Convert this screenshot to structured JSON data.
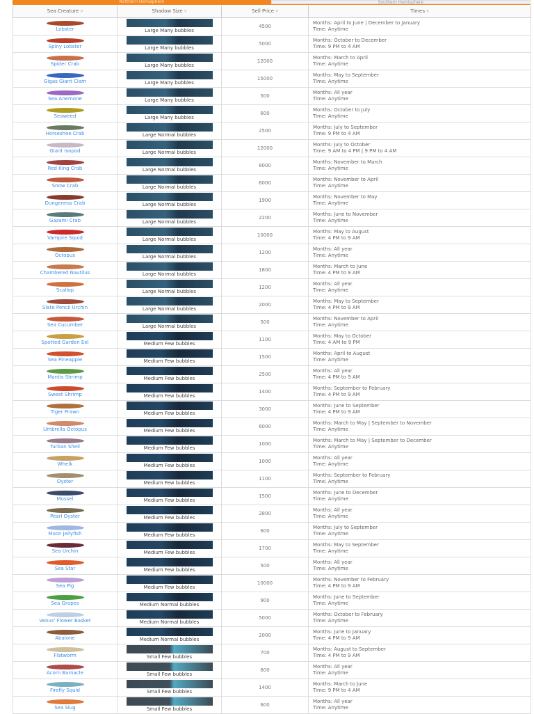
{
  "tabs": [
    "Northern Hemisphere",
    "Southern Hemisphere"
  ],
  "headers": {
    "creature": "Sea Creature",
    "shadow": "Shadow Size",
    "price": "Sell Price",
    "times": "Times",
    "sort_icon": "▿"
  },
  "labels": {
    "months": "Months:",
    "time": "Time:"
  },
  "colors": {
    "accent": "#f3861f",
    "link": "#3a8ee6"
  },
  "rows": [
    {
      "name": "Lobster",
      "size": "Large",
      "bubbles": "Many bubbles",
      "price": "4500",
      "months": "April to June | December to January",
      "time": "Anytime",
      "color": "#a84a2a"
    },
    {
      "name": "Spiny Lobster",
      "size": "Large",
      "bubbles": "Many bubbles",
      "price": "5000",
      "months": "October to December",
      "time": "9 PM to 4 AM",
      "color": "#b8402a"
    },
    {
      "name": "Spider Crab",
      "size": "Large",
      "bubbles": "Many bubbles",
      "price": "12000",
      "months": "March to April",
      "time": "Anytime",
      "color": "#c8704a"
    },
    {
      "name": "Gigas Giant Clam",
      "size": "Large",
      "bubbles": "Many bubbles",
      "price": "15000",
      "months": "May to September",
      "time": "Anytime",
      "color": "#3a66c0"
    },
    {
      "name": "Sea Anemone",
      "size": "Large",
      "bubbles": "Many bubbles",
      "price": "500",
      "months": "All year",
      "time": "Anytime",
      "color": "#9a6ac0"
    },
    {
      "name": "Seaweed",
      "size": "Large",
      "bubbles": "Many bubbles",
      "price": "600",
      "months": "October to July",
      "time": "Anytime",
      "color": "#b09a20"
    },
    {
      "name": "Horseshoe Crab",
      "size": "Large",
      "bubbles": "Normal bubbles",
      "price": "2500",
      "months": "July to September",
      "time": "9 PM to 4 AM",
      "color": "#6a7a60"
    },
    {
      "name": "Giant Isopod",
      "size": "Large",
      "bubbles": "Normal bubbles",
      "price": "12000",
      "months": "July to October",
      "time": "9 AM to 4 PM | 9 PM to 4 AM",
      "color": "#c8b8c8"
    },
    {
      "name": "Red King Crab",
      "size": "Large",
      "bubbles": "Normal bubbles",
      "price": "8000",
      "months": "November to March",
      "time": "Anytime",
      "color": "#a04040"
    },
    {
      "name": "Snow Crab",
      "size": "Large",
      "bubbles": "Normal bubbles",
      "price": "6000",
      "months": "November to April",
      "time": "Anytime",
      "color": "#c05a3a"
    },
    {
      "name": "Dungeness Crab",
      "size": "Large",
      "bubbles": "Normal bubbles",
      "price": "1900",
      "months": "November to May",
      "time": "Anytime",
      "color": "#8a3a2a"
    },
    {
      "name": "Gazami Crab",
      "size": "Large",
      "bubbles": "Normal bubbles",
      "price": "2200",
      "months": "June to November",
      "time": "Anytime",
      "color": "#5a7a7a"
    },
    {
      "name": "Vampire Squid",
      "size": "Large",
      "bubbles": "Normal bubbles",
      "price": "10000",
      "months": "May to August",
      "time": "4 PM to 9 AM",
      "color": "#c82a2a"
    },
    {
      "name": "Octopus",
      "size": "Large",
      "bubbles": "Normal bubbles",
      "price": "1200",
      "months": "All year",
      "time": "Anytime",
      "color": "#b06a3a"
    },
    {
      "name": "Chambered Nautilus",
      "size": "Large",
      "bubbles": "Normal bubbles",
      "price": "1800",
      "months": "March to June",
      "time": "4 PM to 9 AM",
      "color": "#c87a4a"
    },
    {
      "name": "Scallop",
      "size": "Large",
      "bubbles": "Normal bubbles",
      "price": "1200",
      "months": "All year",
      "time": "Anytime",
      "color": "#d07040"
    },
    {
      "name": "Slate Pencil Urchin",
      "size": "Large",
      "bubbles": "Normal bubbles",
      "price": "2000",
      "months": "May to September",
      "time": "4 PM to 9 AM",
      "color": "#a04a3a"
    },
    {
      "name": "Sea Cucumber",
      "size": "Large",
      "bubbles": "Normal bubbles",
      "price": "500",
      "months": "November to April",
      "time": "Anytime",
      "color": "#c85a3a"
    },
    {
      "name": "Spotted Garden Eel",
      "size": "Medium",
      "bubbles": "Few bubbles",
      "price": "1100",
      "months": "May to October",
      "time": "4 AM to 9 PM",
      "color": "#c8a040"
    },
    {
      "name": "Sea Pineapple",
      "size": "Medium",
      "bubbles": "Few bubbles",
      "price": "1500",
      "months": "April to August",
      "time": "Anytime",
      "color": "#d05030"
    },
    {
      "name": "Mantis Shrimp",
      "size": "Medium",
      "bubbles": "Few bubbles",
      "price": "2500",
      "months": "All year",
      "time": "4 PM to 9 AM",
      "color": "#5a9a40"
    },
    {
      "name": "Sweet Shrimp",
      "size": "Medium",
      "bubbles": "Few bubbles",
      "price": "1400",
      "months": "September to February",
      "time": "4 PM to 9 AM",
      "color": "#d04a2a"
    },
    {
      "name": "Tiger Prawn",
      "size": "Medium",
      "bubbles": "Few bubbles",
      "price": "3000",
      "months": "June to September",
      "time": "4 PM to 9 AM",
      "color": "#b0703a"
    },
    {
      "name": "Umbrella Octopus",
      "size": "Medium",
      "bubbles": "Few bubbles",
      "price": "6000",
      "months": "March to May | September to November",
      "time": "Anytime",
      "color": "#d08a6a"
    },
    {
      "name": "Turban Shell",
      "size": "Medium",
      "bubbles": "Few bubbles",
      "price": "1000",
      "months": "March to May | September to December",
      "time": "Anytime",
      "color": "#9a7a8a"
    },
    {
      "name": "Whelk",
      "size": "Medium",
      "bubbles": "Few bubbles",
      "price": "1000",
      "months": "All year",
      "time": "Anytime",
      "color": "#c8a060"
    },
    {
      "name": "Oyster",
      "size": "Medium",
      "bubbles": "Few bubbles",
      "price": "1100",
      "months": "September to February",
      "time": "Anytime",
      "color": "#a09070"
    },
    {
      "name": "Mussel",
      "size": "Medium",
      "bubbles": "Few bubbles",
      "price": "1500",
      "months": "June to December",
      "time": "Anytime",
      "color": "#3a4a6a"
    },
    {
      "name": "Pearl Oyster",
      "size": "Medium",
      "bubbles": "Few bubbles",
      "price": "2800",
      "months": "All year",
      "time": "Anytime",
      "color": "#7a6a50"
    },
    {
      "name": "Moon Jellyfish",
      "size": "Medium",
      "bubbles": "Few bubbles",
      "price": "600",
      "months": "July to September",
      "time": "Anytime",
      "color": "#a0b8e0"
    },
    {
      "name": "Sea Urchin",
      "size": "Medium",
      "bubbles": "Few bubbles",
      "price": "1700",
      "months": "May to September",
      "time": "Anytime",
      "color": "#6a2a3a"
    },
    {
      "name": "Sea Star",
      "size": "Medium",
      "bubbles": "Few bubbles",
      "price": "500",
      "months": "All year",
      "time": "Anytime",
      "color": "#e05a2a"
    },
    {
      "name": "Sea Pig",
      "size": "Medium",
      "bubbles": "Few bubbles",
      "price": "10000",
      "months": "November to February",
      "time": "4 PM to 9 AM",
      "color": "#c0a0d0"
    },
    {
      "name": "Sea Grapes",
      "size": "Medium",
      "bubbles": "Normal bubbles",
      "price": "900",
      "months": "June to September",
      "time": "Anytime",
      "color": "#4aa040"
    },
    {
      "name": "Venus' Flower Basket",
      "size": "Medium",
      "bubbles": "Normal bubbles",
      "price": "5000",
      "months": "October to February",
      "time": "Anytime",
      "color": "#c0d0e0"
    },
    {
      "name": "Abalone",
      "size": "Medium",
      "bubbles": "Normal bubbles",
      "price": "2000",
      "months": "June to January",
      "time": "4 PM to 9 AM",
      "color": "#8a5a3a"
    },
    {
      "name": "Flatworm",
      "size": "Small",
      "bubbles": "Few bubbles",
      "price": "700",
      "months": "August to September",
      "time": "4 PM to 9 AM",
      "color": "#d0c0a0"
    },
    {
      "name": "Acorn Barnacle",
      "size": "Small",
      "bubbles": "Few bubbles",
      "price": "600",
      "months": "All year",
      "time": "Anytime",
      "color": "#b04a4a"
    },
    {
      "name": "Firefly Squid",
      "size": "Small",
      "bubbles": "Few bubbles",
      "price": "1400",
      "months": "March to June",
      "time": "9 PM to 4 AM",
      "color": "#7ab0c0"
    },
    {
      "name": "Sea Slug",
      "size": "Small",
      "bubbles": "Few bubbles",
      "price": "600",
      "months": "All year",
      "time": "Anytime",
      "color": "#e07a3a"
    }
  ]
}
